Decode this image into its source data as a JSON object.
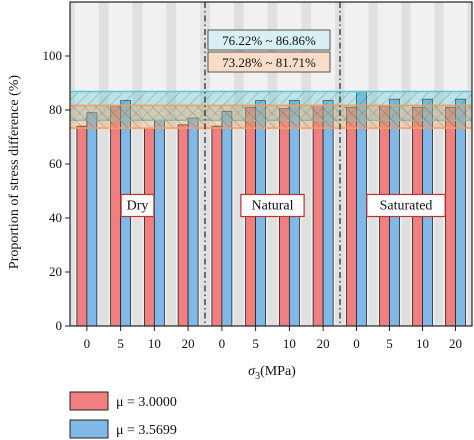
{
  "chart_data": {
    "type": "bar",
    "ylabel": "Proportion of stress difference (%)",
    "xlabel_sym": "σ",
    "xlabel_sub": "3",
    "xlabel_unit": "(MPa)",
    "ylim": [
      0,
      120
    ],
    "yticks": [
      "0",
      "20",
      "40",
      "60",
      "80",
      "100"
    ],
    "groups": [
      {
        "name": "Dry",
        "categories": [
          "0",
          "5",
          "10",
          "20"
        ]
      },
      {
        "name": "Natural",
        "categories": [
          "0",
          "5",
          "10",
          "20"
        ]
      },
      {
        "name": "Saturated",
        "categories": [
          "0",
          "5",
          "10",
          "20"
        ]
      }
    ],
    "series": [
      {
        "name": "μ = 3.0000",
        "color": "#f08080",
        "values": [
          74.0,
          81.5,
          73.3,
          74.5,
          74.0,
          81.0,
          80.5,
          81.7,
          81.0,
          81.5,
          81.0,
          81.0
        ]
      },
      {
        "name": "μ = 3.5699",
        "color": "#80b8e8",
        "values": [
          79.0,
          83.5,
          76.2,
          77.0,
          79.5,
          83.5,
          83.5,
          83.5,
          86.9,
          84.0,
          84.0,
          84.0
        ]
      }
    ],
    "ranges": [
      {
        "label": "76.22% ~ 86.86%",
        "min": 76.22,
        "max": 86.86,
        "color": "#58c8d0"
      },
      {
        "label": "73.28% ~ 81.71%",
        "min": 73.28,
        "max": 81.71,
        "color": "#f0a060"
      }
    ],
    "grid": false,
    "legend_position": "bottom-left"
  }
}
